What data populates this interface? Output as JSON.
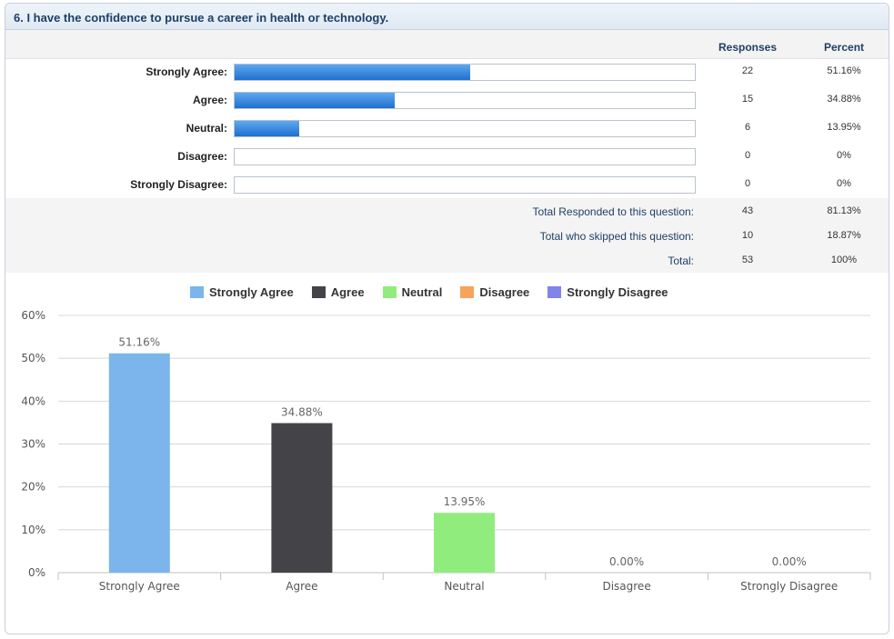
{
  "question": {
    "title": "6. I have the confidence to pursue a career in health or technology."
  },
  "table": {
    "col_responses": "Responses",
    "col_percent": "Percent",
    "rows": [
      {
        "label": "Strongly Agree:",
        "responses": "22",
        "percent": "51.16%",
        "fill": 0.5116
      },
      {
        "label": "Agree:",
        "responses": "15",
        "percent": "34.88%",
        "fill": 0.3488
      },
      {
        "label": "Neutral:",
        "responses": "6",
        "percent": "13.95%",
        "fill": 0.1395
      },
      {
        "label": "Disagree:",
        "responses": "0",
        "percent": "0%",
        "fill": 0
      },
      {
        "label": "Strongly Disagree:",
        "responses": "0",
        "percent": "0%",
        "fill": 0
      }
    ],
    "totals": [
      {
        "label": "Total Responded to this question:",
        "responses": "43",
        "percent": "81.13%"
      },
      {
        "label": "Total who skipped this question:",
        "responses": "10",
        "percent": "18.87%"
      },
      {
        "label": "Total:",
        "responses": "53",
        "percent": "100%"
      }
    ]
  },
  "chart_data": {
    "type": "bar",
    "categories": [
      "Strongly Agree",
      "Agree",
      "Neutral",
      "Disagree",
      "Strongly Disagree"
    ],
    "values": [
      51.16,
      34.88,
      13.95,
      0,
      0
    ],
    "data_labels": [
      "51.16%",
      "34.88%",
      "13.95%",
      "0.00%",
      "0.00%"
    ],
    "colors": [
      "#7cb5ec",
      "#434348",
      "#90ed7d",
      "#f7a35c",
      "#8085e9"
    ],
    "legend": [
      "Strongly Agree",
      "Agree",
      "Neutral",
      "Disagree",
      "Strongly Disagree"
    ],
    "legend_position": "top",
    "ylim": [
      0,
      60
    ],
    "yticks": [
      "0%",
      "10%",
      "20%",
      "30%",
      "40%",
      "50%",
      "60%"
    ],
    "grid": true,
    "title": "",
    "xlabel": "",
    "ylabel": ""
  }
}
